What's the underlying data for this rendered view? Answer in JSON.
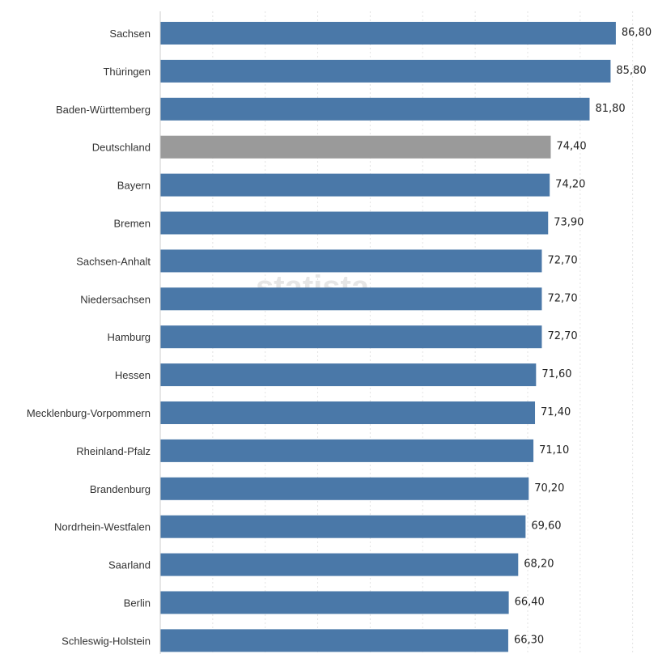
{
  "chart_data": {
    "type": "bar",
    "orientation": "horizontal",
    "categories": [
      "Sachsen",
      "Thüringen",
      "Baden-Württemberg",
      "Deutschland",
      "Bayern",
      "Bremen",
      "Sachsen-Anhalt",
      "Niedersachsen",
      "Hamburg",
      "Hessen",
      "Mecklenburg-Vorpommern",
      "Rheinland-Pfalz",
      "Brandenburg",
      "Nordrhein-Westfalen",
      "Saarland",
      "Berlin",
      "Schleswig-Holstein"
    ],
    "values": [
      86.8,
      85.8,
      81.8,
      74.4,
      74.2,
      73.9,
      72.7,
      72.7,
      72.7,
      71.6,
      71.4,
      71.1,
      70.2,
      69.6,
      68.2,
      66.4,
      66.3
    ],
    "value_labels": [
      "86,80",
      "85,80",
      "81,80",
      "74,40",
      "74,20",
      "73,90",
      "72,70",
      "72,70",
      "72,70",
      "71,60",
      "71,40",
      "71,10",
      "70,20",
      "69,60",
      "68,20",
      "66,40",
      "66,30"
    ],
    "highlight_category": "Deutschland",
    "colors": {
      "bar": "#4a78a8",
      "highlight": "#9a9a9a",
      "grid": "#e3e3e3",
      "axis": "#cccccc"
    },
    "xlim": [
      0,
      90
    ],
    "grid": true,
    "legend": "none",
    "watermark": "statista"
  }
}
